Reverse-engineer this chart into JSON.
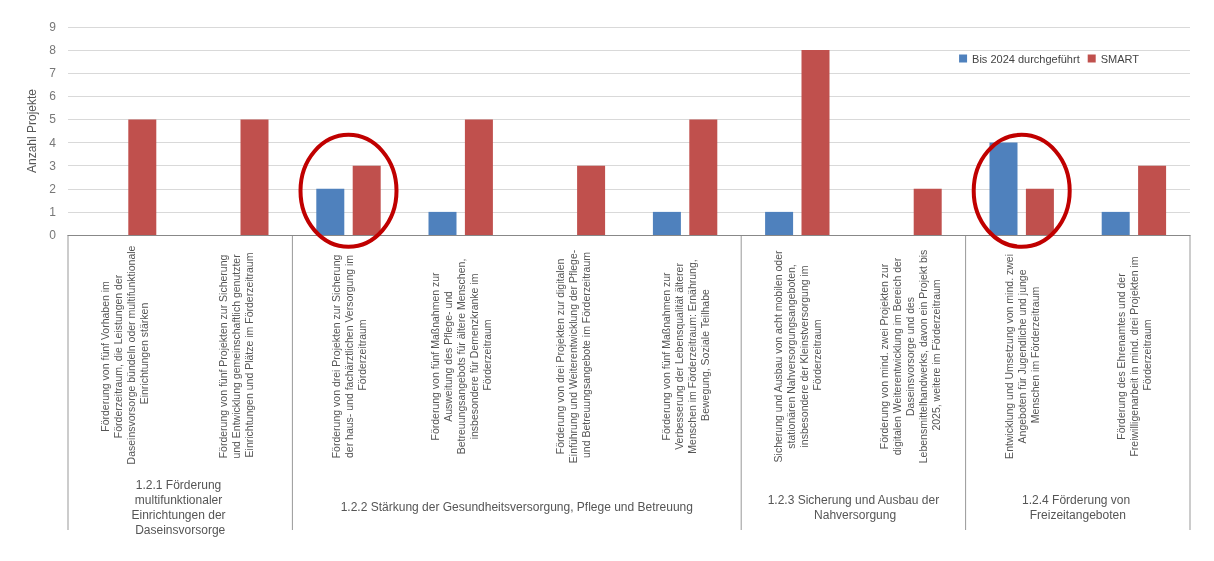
{
  "chart_data": {
    "type": "bar",
    "ylabel": "Anzahl Projekte",
    "categories": [
      "Förderung von fünf Vorhaben im Förderzeitraum, die Leistungen der Daseinsvorsorge bündeln oder multifunktionale Einrichtungen stärken",
      "Förderung von fünf Projekten zur Sicherung und Entwicklung gemeinschaftlich genutzter Einrichtungen und Plätze im Förderzeitraum",
      "Förderung von drei Projekten zur Sicherung der haus- und fachärztlichen Versorgung im Förderzeitraum",
      "Förderung von fünf Maßnahmen zur Ausweitung des Pflege- und Betreuungsangebots für ältere Menschen, insbesondere für Demenzkranke im Förderzeitraum",
      "Förderung von drei Projekten zur digitalen Einführung und Weiterentwicklung der Pflege- und Betreuungsangebote im Förderzeitraum",
      "Förderung von fünf Maßnahmen zur Verbesserung der Lebensqualität älterer Menschen im Förderzeitraum: Ernährung, Bewegung, Soziale Teilhabe",
      "Sicherung und Ausbau von acht mobilen oder stationären Nahversorgungsangeboten, insbesondere der Kleinstversorgung im Förderzeitraum",
      "Förderung von mind. zwei Projekten zur digitalen Weiterentwicklung im Bereich der Daseinsvorsorge und des Lebensmittelhandwerks, davon ein Projekt bis 2025, weitere im Förderzeitraum",
      "Entwicklung und Umsetzung von mind. zwei Angeboten für Jugendliche und junge Menschen im Förderzeitraum",
      "Förderung des Ehrenamtes und der Freiwilligenarbeit in mind. drei Projekten im Förderzeitraum"
    ],
    "series": [
      {
        "name": "Bis 2024 durchgeführt",
        "color": "#4f81bd",
        "values": [
          0,
          0,
          2,
          1,
          0,
          1,
          1,
          0,
          4,
          1
        ]
      },
      {
        "name": "SMART",
        "color": "#c0504d",
        "values": [
          5,
          5,
          3,
          5,
          3,
          5,
          8,
          2,
          2,
          3
        ]
      }
    ],
    "annotations": [
      "1.2.1 Förderung multifunktionaler Einrichtungen der Daseinsvorsorge",
      "1.2.2 Stärkung der Gesundheitsversorgung, Pflege und Betreuung",
      "1.2.3 Sicherung und Ausbau der Nahversorgung",
      "1.2.4 Förderung von Freizeitangeboten"
    ],
    "ylim": [
      0,
      9
    ],
    "yticks": [
      0,
      1,
      2,
      3,
      4,
      5,
      6,
      7,
      8,
      9
    ],
    "grid": "y",
    "legend": "top right"
  }
}
